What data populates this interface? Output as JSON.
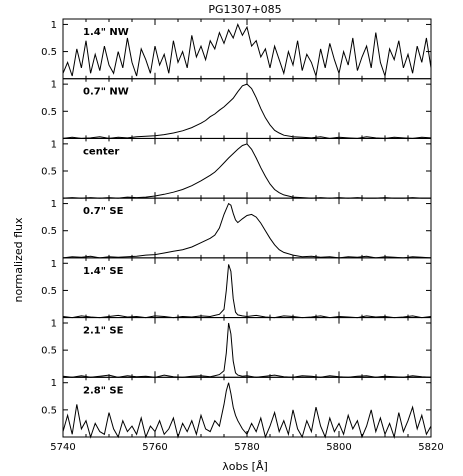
{
  "chart_data": {
    "type": "line",
    "title": "PG1307+085",
    "xlabel": "λobs [Å]",
    "ylabel": "normalized flux",
    "xlim": [
      5740,
      5820
    ],
    "x_ticks": [
      5740,
      5760,
      5780,
      5800,
      5820
    ],
    "x_tick_labels": [
      "5740",
      "5760",
      "5780",
      "5800",
      "5820"
    ],
    "grid": false,
    "panels": [
      {
        "label": "1.4\" NW",
        "ylim": [
          0,
          1.1
        ],
        "y_ticks": [
          0.5,
          1
        ],
        "y_tick_labels": [
          "0.5",
          "1"
        ],
        "series": [
          {
            "x": [
              5740,
              5741,
              5742,
              5743,
              5744,
              5745,
              5746,
              5747,
              5748,
              5749,
              5750,
              5751,
              5752,
              5753,
              5754,
              5755,
              5756,
              5757,
              5758,
              5759,
              5760,
              5761,
              5762,
              5763,
              5764,
              5765,
              5766,
              5767,
              5768,
              5769,
              5770,
              5771,
              5772,
              5773,
              5774,
              5775,
              5776,
              5777,
              5778,
              5779,
              5780,
              5781,
              5782,
              5783,
              5784,
              5785,
              5786,
              5787,
              5788,
              5789,
              5790,
              5791,
              5792,
              5793,
              5794,
              5795,
              5796,
              5797,
              5798,
              5799,
              5800,
              5801,
              5802,
              5803,
              5804,
              5805,
              5806,
              5807,
              5808,
              5809,
              5810,
              5811,
              5812,
              5813,
              5814,
              5815,
              5816,
              5817,
              5818,
              5819,
              5820
            ],
            "y": [
              0.1,
              0.3,
              0.05,
              0.55,
              0.2,
              0.7,
              0.1,
              0.45,
              0.15,
              0.6,
              0.25,
              0.1,
              0.5,
              0.2,
              0.75,
              0.3,
              0.05,
              0.55,
              0.35,
              0.1,
              0.6,
              0.25,
              0.45,
              0.1,
              0.7,
              0.3,
              0.5,
              0.2,
              0.8,
              0.4,
              0.6,
              0.35,
              0.7,
              0.55,
              0.85,
              0.65,
              0.9,
              0.75,
              1.0,
              0.8,
              0.95,
              0.6,
              0.7,
              0.4,
              0.55,
              0.2,
              0.6,
              0.35,
              0.1,
              0.5,
              0.25,
              0.7,
              0.15,
              0.45,
              0.3,
              0.05,
              0.55,
              0.2,
              0.65,
              0.35,
              0.1,
              0.5,
              0.25,
              0.75,
              0.15,
              0.4,
              0.6,
              0.2,
              0.85,
              0.3,
              0.05,
              0.55,
              0.35,
              0.7,
              0.2,
              0.45,
              0.1,
              0.6,
              0.3,
              0.75,
              0.2
            ]
          }
        ]
      },
      {
        "label": "0.7\" NW",
        "ylim": [
          0,
          1.1
        ],
        "y_ticks": [
          0.5,
          1
        ],
        "y_tick_labels": [
          "0.5",
          "1"
        ],
        "series": [
          {
            "x": [
              5740,
              5742,
              5744,
              5746,
              5748,
              5750,
              5752,
              5754,
              5756,
              5758,
              5760,
              5762,
              5764,
              5766,
              5768,
              5770,
              5771,
              5772,
              5773,
              5774,
              5775,
              5776,
              5777,
              5778,
              5779,
              5780,
              5781,
              5782,
              5783,
              5784,
              5785,
              5786,
              5787,
              5788,
              5790,
              5792,
              5794,
              5796,
              5798,
              5800,
              5802,
              5804,
              5806,
              5808,
              5810,
              5812,
              5814,
              5816,
              5818,
              5820
            ],
            "y": [
              0.0,
              0.02,
              0.0,
              0.01,
              0.03,
              0.0,
              0.02,
              0.01,
              0.03,
              0.04,
              0.05,
              0.07,
              0.1,
              0.14,
              0.2,
              0.28,
              0.33,
              0.4,
              0.45,
              0.52,
              0.58,
              0.66,
              0.74,
              0.86,
              0.97,
              1.0,
              0.92,
              0.75,
              0.55,
              0.38,
              0.25,
              0.15,
              0.1,
              0.06,
              0.03,
              0.02,
              0.01,
              0.03,
              0.0,
              0.02,
              0.01,
              0.0,
              0.03,
              0.01,
              0.0,
              0.02,
              0.01,
              0.0,
              0.02,
              0.01
            ]
          }
        ]
      },
      {
        "label": "center",
        "ylim": [
          0,
          1.1
        ],
        "y_ticks": [
          0.5,
          1
        ],
        "y_tick_labels": [
          "0.5",
          "1"
        ],
        "series": [
          {
            "x": [
              5740,
              5742,
              5744,
              5746,
              5748,
              5750,
              5752,
              5754,
              5756,
              5758,
              5760,
              5762,
              5764,
              5766,
              5768,
              5770,
              5772,
              5773,
              5774,
              5775,
              5776,
              5777,
              5778,
              5779,
              5780,
              5781,
              5782,
              5783,
              5784,
              5785,
              5786,
              5787,
              5788,
              5789,
              5790,
              5792,
              5794,
              5796,
              5798,
              5800,
              5802,
              5804,
              5806,
              5808,
              5810,
              5812,
              5814,
              5816,
              5818,
              5820
            ],
            "y": [
              0.0,
              0.01,
              0.0,
              0.01,
              0.0,
              0.01,
              0.0,
              0.02,
              0.01,
              0.02,
              0.04,
              0.07,
              0.11,
              0.16,
              0.23,
              0.32,
              0.42,
              0.48,
              0.56,
              0.65,
              0.74,
              0.82,
              0.9,
              0.97,
              1.0,
              0.9,
              0.74,
              0.56,
              0.4,
              0.26,
              0.16,
              0.1,
              0.06,
              0.04,
              0.02,
              0.01,
              0.0,
              0.01,
              0.0,
              0.01,
              0.0,
              0.01,
              0.0,
              0.0,
              0.01,
              0.0,
              0.0,
              0.01,
              0.0,
              0.0
            ]
          }
        ]
      },
      {
        "label": "0.7\" SE",
        "ylim": [
          0,
          1.1
        ],
        "y_ticks": [
          0.5,
          1
        ],
        "y_tick_labels": [
          "0.5",
          "1"
        ],
        "series": [
          {
            "x": [
              5740,
              5742,
              5744,
              5746,
              5748,
              5750,
              5752,
              5754,
              5756,
              5758,
              5760,
              5762,
              5764,
              5766,
              5768,
              5770,
              5772,
              5773,
              5774,
              5775,
              5776,
              5776.5,
              5777,
              5777.5,
              5778,
              5779,
              5780,
              5781,
              5782,
              5783,
              5784,
              5785,
              5786,
              5787,
              5788,
              5790,
              5792,
              5794,
              5796,
              5798,
              5800,
              5802,
              5804,
              5806,
              5808,
              5810,
              5812,
              5814,
              5816,
              5818,
              5820
            ],
            "y": [
              0.0,
              0.02,
              0.01,
              0.03,
              0.0,
              0.02,
              0.01,
              0.02,
              0.03,
              0.05,
              0.06,
              0.09,
              0.12,
              0.15,
              0.2,
              0.28,
              0.36,
              0.42,
              0.55,
              0.8,
              1.0,
              0.97,
              0.82,
              0.7,
              0.65,
              0.72,
              0.78,
              0.8,
              0.75,
              0.64,
              0.5,
              0.36,
              0.24,
              0.15,
              0.1,
              0.05,
              0.02,
              0.03,
              0.01,
              0.02,
              0.0,
              0.02,
              0.01,
              0.03,
              0.0,
              0.02,
              0.01,
              0.0,
              0.02,
              0.01,
              0.0
            ]
          }
        ]
      },
      {
        "label": "1.4\" SE",
        "ylim": [
          0,
          1.1
        ],
        "y_ticks": [
          0.5,
          1
        ],
        "y_tick_labels": [
          "0.5",
          "1"
        ],
        "series": [
          {
            "x": [
              5740,
              5742,
              5744,
              5746,
              5748,
              5750,
              5752,
              5754,
              5756,
              5758,
              5760,
              5762,
              5764,
              5766,
              5768,
              5770,
              5772,
              5773,
              5774,
              5775,
              5775.5,
              5776,
              5776.5,
              5777,
              5777.5,
              5778,
              5779,
              5780,
              5782,
              5784,
              5786,
              5788,
              5790,
              5792,
              5794,
              5796,
              5798,
              5800,
              5802,
              5804,
              5806,
              5808,
              5810,
              5812,
              5814,
              5816,
              5818,
              5820
            ],
            "y": [
              0.02,
              0.0,
              0.03,
              0.01,
              0.0,
              0.02,
              0.04,
              0.01,
              0.02,
              0.0,
              0.03,
              0.02,
              0.0,
              0.02,
              0.01,
              0.03,
              0.02,
              0.04,
              0.06,
              0.15,
              0.5,
              0.98,
              0.85,
              0.35,
              0.1,
              0.05,
              0.03,
              0.02,
              0.04,
              0.01,
              0.0,
              0.03,
              0.02,
              0.0,
              0.01,
              0.03,
              0.0,
              0.02,
              0.01,
              0.0,
              0.03,
              0.01,
              0.02,
              0.0,
              0.01,
              0.03,
              0.0,
              0.02
            ]
          }
        ]
      },
      {
        "label": "2.1\" SE",
        "ylim": [
          0,
          1.1
        ],
        "y_ticks": [
          0.5,
          1
        ],
        "y_tick_labels": [
          "0.5",
          "1"
        ],
        "series": [
          {
            "x": [
              5740,
              5742,
              5744,
              5746,
              5748,
              5750,
              5752,
              5754,
              5756,
              5758,
              5760,
              5762,
              5764,
              5766,
              5768,
              5770,
              5772,
              5773,
              5774,
              5775,
              5775.5,
              5776,
              5776.5,
              5777,
              5777.5,
              5778,
              5779,
              5780,
              5782,
              5784,
              5786,
              5788,
              5790,
              5792,
              5794,
              5796,
              5798,
              5800,
              5802,
              5804,
              5806,
              5808,
              5810,
              5812,
              5814,
              5816,
              5818,
              5820
            ],
            "y": [
              0.02,
              0.0,
              0.03,
              0.0,
              0.02,
              0.04,
              0.0,
              0.03,
              0.01,
              0.02,
              0.0,
              0.04,
              0.01,
              0.0,
              0.02,
              0.03,
              0.01,
              0.03,
              0.05,
              0.12,
              0.45,
              1.0,
              0.8,
              0.3,
              0.08,
              0.04,
              0.02,
              0.03,
              0.0,
              0.02,
              0.04,
              0.01,
              0.0,
              0.03,
              0.02,
              0.0,
              0.03,
              0.01,
              0.0,
              0.02,
              0.03,
              0.0,
              0.02,
              0.01,
              0.0,
              0.03,
              0.01,
              0.0
            ]
          }
        ]
      },
      {
        "label": "2.8\" SE",
        "ylim": [
          0,
          1.1
        ],
        "y_ticks": [
          0.5,
          1
        ],
        "y_tick_labels": [
          "0.5",
          "1"
        ],
        "series": [
          {
            "x": [
              5740,
              5741,
              5742,
              5743,
              5744,
              5745,
              5746,
              5747,
              5748,
              5749,
              5750,
              5751,
              5752,
              5753,
              5754,
              5755,
              5756,
              5757,
              5758,
              5759,
              5760,
              5761,
              5762,
              5763,
              5764,
              5765,
              5766,
              5767,
              5768,
              5769,
              5770,
              5771,
              5772,
              5773,
              5774,
              5775,
              5775.5,
              5776,
              5776.5,
              5777,
              5777.5,
              5778,
              5779,
              5780,
              5781,
              5782,
              5783,
              5784,
              5785,
              5786,
              5787,
              5788,
              5789,
              5790,
              5791,
              5792,
              5793,
              5794,
              5795,
              5796,
              5797,
              5798,
              5799,
              5800,
              5801,
              5802,
              5803,
              5804,
              5805,
              5806,
              5807,
              5808,
              5809,
              5810,
              5811,
              5812,
              5813,
              5814,
              5815,
              5816,
              5817,
              5818,
              5819,
              5820
            ],
            "y": [
              0.1,
              0.4,
              0.05,
              0.6,
              0.15,
              0.3,
              0.0,
              0.25,
              0.1,
              0.05,
              0.45,
              0.15,
              0.0,
              0.3,
              0.1,
              0.2,
              0.05,
              0.35,
              0.0,
              0.2,
              0.1,
              0.3,
              0.05,
              0.15,
              0.35,
              0.0,
              0.25,
              0.1,
              0.3,
              0.05,
              0.4,
              0.15,
              0.1,
              0.3,
              0.2,
              0.6,
              0.85,
              1.0,
              0.8,
              0.55,
              0.4,
              0.3,
              0.15,
              0.05,
              0.25,
              0.1,
              0.35,
              0.0,
              0.2,
              0.45,
              0.1,
              0.3,
              0.05,
              0.5,
              0.15,
              0.0,
              0.3,
              0.1,
              0.55,
              0.2,
              0.0,
              0.35,
              0.1,
              0.25,
              0.05,
              0.4,
              0.15,
              0.3,
              0.0,
              0.2,
              0.5,
              0.1,
              0.35,
              0.05,
              0.25,
              0.0,
              0.45,
              0.1,
              0.3,
              0.55,
              0.15,
              0.4,
              0.05,
              0.2
            ]
          }
        ]
      }
    ]
  }
}
